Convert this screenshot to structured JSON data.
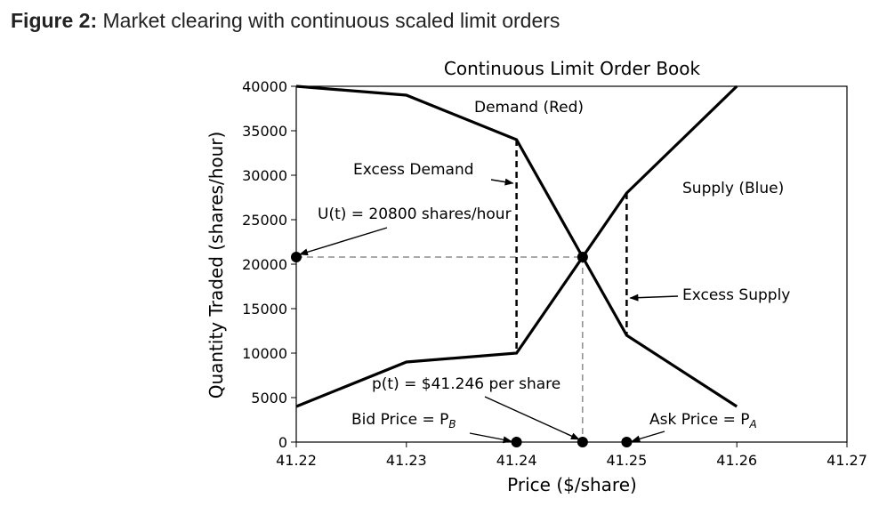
{
  "figure": {
    "label": "Figure 2:",
    "caption": "Market clearing with continuous scaled limit orders"
  },
  "chart_data": {
    "type": "line",
    "title": "Continuous Limit Order Book",
    "xlabel": "Price ($/share)",
    "ylabel": "Quantity Traded (shares/hour)",
    "xlim": [
      41.22,
      41.27
    ],
    "ylim": [
      0,
      40000
    ],
    "x_ticks": [
      "41.22",
      "41.23",
      "41.24",
      "41.25",
      "41.26",
      "41.27"
    ],
    "y_ticks": [
      "0",
      "5000",
      "10000",
      "15000",
      "20000",
      "25000",
      "30000",
      "35000",
      "40000"
    ],
    "series": [
      {
        "name": "Demand (Red)",
        "x": [
          41.22,
          41.23,
          41.24,
          41.25,
          41.26
        ],
        "y": [
          40000,
          39000,
          34000,
          12000,
          4000
        ]
      },
      {
        "name": "Supply (Blue)",
        "x": [
          41.22,
          41.23,
          41.24,
          41.25,
          41.26
        ],
        "y": [
          4000,
          9000,
          10000,
          28000,
          40000
        ]
      }
    ],
    "guides": {
      "clearing_price": 41.246,
      "clearing_quantity": 20800,
      "excess_demand": {
        "x": 41.24,
        "y_from": 10000,
        "y_to": 34000
      },
      "excess_supply": {
        "x": 41.25,
        "y_from": 12000,
        "y_to": 28000
      }
    },
    "markers": [
      {
        "x": 41.246,
        "y": 20800
      },
      {
        "x": 41.22,
        "y": 20800
      },
      {
        "x": 41.24,
        "y": 0
      },
      {
        "x": 41.246,
        "y": 0
      },
      {
        "x": 41.25,
        "y": 0
      }
    ],
    "annotations": {
      "demand_label": "Demand (Red)",
      "supply_label": "Supply (Blue)",
      "excess_demand": "Excess Demand",
      "excess_supply": "Excess Supply",
      "u_label": "U(t) = 20800 shares/hour",
      "p_label": "p(t) = $41.246 per share",
      "bid_label": "Bid Price = P",
      "bid_sub": "B",
      "ask_label": "Ask Price = P",
      "ask_sub": "A"
    }
  }
}
